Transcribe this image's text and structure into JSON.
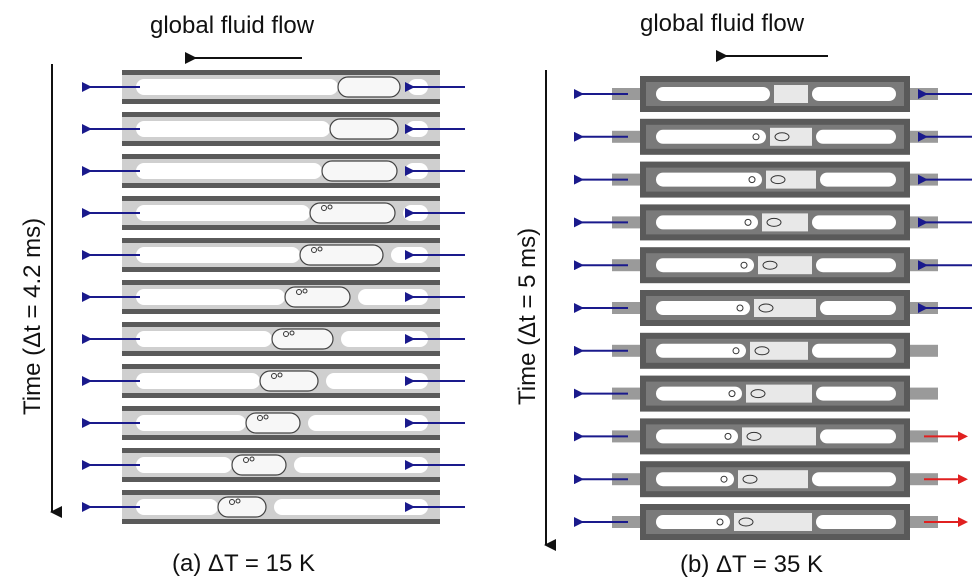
{
  "panel_a": {
    "flow_label": "global fluid flow",
    "time_label": "Time (Δt = 4.2 ms)",
    "caption": "(a) ΔT = 15 K",
    "frame_count": 11,
    "right_arrow_colors": [
      "#1a1a8c",
      "#1a1a8c",
      "#1a1a8c",
      "#1a1a8c",
      "#1a1a8c",
      "#1a1a8c",
      "#1a1a8c",
      "#1a1a8c",
      "#1a1a8c",
      "#1a1a8c",
      "#1a1a8c"
    ]
  },
  "panel_b": {
    "flow_label": "global fluid flow",
    "time_label": "Time (Δt = 5 ms)",
    "caption": "(b) ΔT = 35 K",
    "frame_count": 11,
    "right_arrow_colors": [
      "#1a1a8c",
      "#1a1a8c",
      "#1a1a8c",
      "#1a1a8c",
      "#1a1a8c",
      "#1a1a8c",
      "none",
      "none",
      "#e02020",
      "#e02020",
      "#e02020"
    ]
  },
  "colors": {
    "inflow_arrow": "#1a1a8c",
    "reverse_flow_arrow": "#e02020",
    "channel_wall": "#5a5a5a",
    "liquid": "#ffffff"
  }
}
